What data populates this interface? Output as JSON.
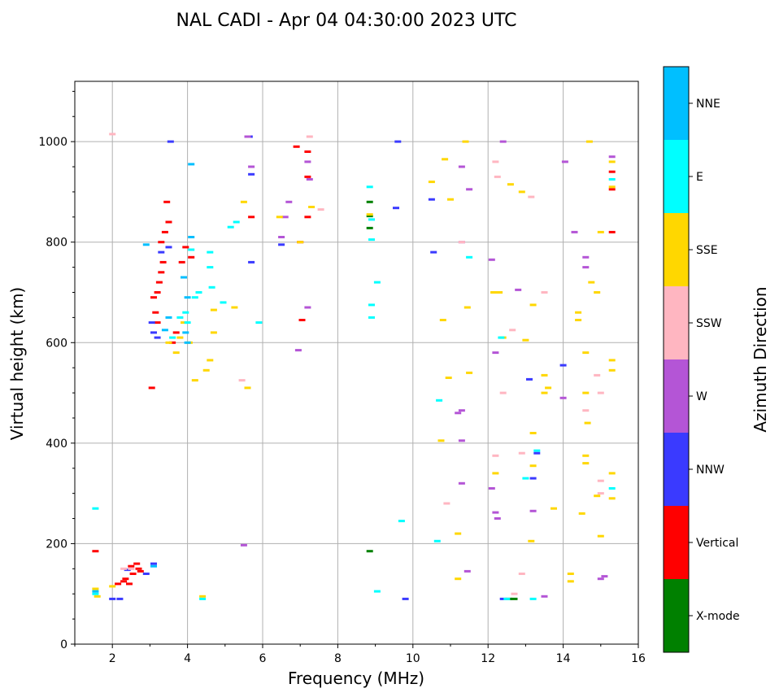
{
  "chart_data": {
    "type": "scatter",
    "title": "NAL CADI - Apr 04 04:30:00 2023 UTC",
    "xlabel": "Frequency (MHz)",
    "ylabel": "Virtual height (km)",
    "xlim": [
      1,
      16
    ],
    "ylim": [
      0,
      1120
    ],
    "xticks": [
      2,
      4,
      6,
      8,
      10,
      12,
      14,
      16
    ],
    "yticks": [
      0,
      200,
      400,
      600,
      800,
      1000
    ],
    "grid": true,
    "colorbar": {
      "label": "Azimuth Direction",
      "categories": [
        {
          "name": "X-mode",
          "color": "#008000"
        },
        {
          "name": "Vertical",
          "color": "#ff0000"
        },
        {
          "name": "NNW",
          "color": "#3a3aff"
        },
        {
          "name": "W",
          "color": "#b455d6"
        },
        {
          "name": "SSW",
          "color": "#ffb6c1"
        },
        {
          "name": "SSE",
          "color": "#ffd700"
        },
        {
          "name": "E",
          "color": "#00ffff"
        },
        {
          "name": "NNE",
          "color": "#00bfff"
        }
      ]
    },
    "series": [
      {
        "name": "X-mode",
        "color": "#008000",
        "points": [
          [
            8.85,
            880
          ],
          [
            8.85,
            852
          ],
          [
            8.85,
            828
          ],
          [
            8.85,
            185
          ],
          [
            12.7,
            90
          ],
          [
            12.55,
            90
          ]
        ]
      },
      {
        "name": "Vertical",
        "color": "#ff0000",
        "points": [
          [
            1.55,
            185
          ],
          [
            3.05,
            510
          ],
          [
            3.1,
            690
          ],
          [
            3.2,
            700
          ],
          [
            3.25,
            720
          ],
          [
            3.3,
            740
          ],
          [
            3.35,
            760
          ],
          [
            3.4,
            820
          ],
          [
            3.45,
            880
          ],
          [
            3.5,
            840
          ],
          [
            3.15,
            660
          ],
          [
            3.2,
            640
          ],
          [
            3.3,
            800
          ],
          [
            3.6,
            600
          ],
          [
            3.7,
            620
          ],
          [
            3.85,
            760
          ],
          [
            3.95,
            790
          ],
          [
            4.1,
            770
          ],
          [
            5.7,
            850
          ],
          [
            6.9,
            990
          ],
          [
            7.0,
            800
          ],
          [
            7.05,
            645
          ],
          [
            7.2,
            980
          ],
          [
            7.2,
            930
          ],
          [
            7.2,
            850
          ],
          [
            15.3,
            940
          ],
          [
            15.3,
            905
          ],
          [
            15.3,
            820
          ],
          [
            2.35,
            130
          ],
          [
            2.45,
            120
          ],
          [
            2.55,
            140
          ],
          [
            2.65,
            160
          ],
          [
            2.75,
            145
          ],
          [
            2.3,
            125
          ],
          [
            2.5,
            155
          ],
          [
            2.15,
            120
          ],
          [
            2.7,
            150
          ]
        ]
      },
      {
        "name": "NNW",
        "color": "#3a3aff",
        "points": [
          [
            3.05,
            640
          ],
          [
            3.1,
            620
          ],
          [
            3.2,
            610
          ],
          [
            3.3,
            780
          ],
          [
            3.5,
            790
          ],
          [
            3.55,
            1000
          ],
          [
            5.65,
            1010
          ],
          [
            5.7,
            935
          ],
          [
            5.7,
            760
          ],
          [
            6.5,
            795
          ],
          [
            9.6,
            1000
          ],
          [
            9.55,
            868
          ],
          [
            10.5,
            885
          ],
          [
            10.55,
            780
          ],
          [
            13.1,
            527
          ],
          [
            13.2,
            330
          ],
          [
            13.3,
            380
          ],
          [
            14.0,
            555
          ],
          [
            2.4,
            148
          ],
          [
            2.9,
            140
          ],
          [
            3.1,
            160
          ],
          [
            2.0,
            90
          ],
          [
            2.2,
            90
          ],
          [
            9.8,
            90
          ],
          [
            12.4,
            90
          ]
        ]
      },
      {
        "name": "W",
        "color": "#b455d6",
        "points": [
          [
            5.5,
            197
          ],
          [
            5.6,
            1010
          ],
          [
            5.7,
            950
          ],
          [
            6.5,
            810
          ],
          [
            6.6,
            850
          ],
          [
            6.7,
            880
          ],
          [
            6.95,
            585
          ],
          [
            7.2,
            960
          ],
          [
            7.25,
            925
          ],
          [
            7.2,
            670
          ],
          [
            11.3,
            950
          ],
          [
            11.5,
            905
          ],
          [
            11.3,
            800
          ],
          [
            11.2,
            460
          ],
          [
            11.3,
            465
          ],
          [
            11.3,
            405
          ],
          [
            11.3,
            320
          ],
          [
            11.45,
            145
          ],
          [
            12.1,
            765
          ],
          [
            12.2,
            580
          ],
          [
            12.2,
            262
          ],
          [
            12.25,
            250
          ],
          [
            12.1,
            310
          ],
          [
            12.4,
            1000
          ],
          [
            12.8,
            705
          ],
          [
            13.2,
            265
          ],
          [
            13.5,
            95
          ],
          [
            14.05,
            960
          ],
          [
            14.3,
            820
          ],
          [
            14.6,
            750
          ],
          [
            14.6,
            770
          ],
          [
            14.0,
            490
          ],
          [
            15.3,
            970
          ],
          [
            15.0,
            130
          ],
          [
            15.1,
            135
          ]
        ]
      },
      {
        "name": "SSW",
        "color": "#ffb6c1",
        "points": [
          [
            2.0,
            1015
          ],
          [
            5.45,
            525
          ],
          [
            7.25,
            1010
          ],
          [
            7.55,
            865
          ],
          [
            11.3,
            800
          ],
          [
            12.2,
            960
          ],
          [
            12.25,
            930
          ],
          [
            12.4,
            500
          ],
          [
            12.2,
            375
          ],
          [
            12.65,
            625
          ],
          [
            12.7,
            100
          ],
          [
            12.9,
            380
          ],
          [
            12.9,
            140
          ],
          [
            13.15,
            890
          ],
          [
            13.5,
            700
          ],
          [
            14.6,
            465
          ],
          [
            14.9,
            535
          ],
          [
            15.0,
            500
          ],
          [
            15.0,
            325
          ],
          [
            15.0,
            300
          ],
          [
            10.9,
            280
          ],
          [
            2.3,
            150
          ],
          [
            2.5,
            150
          ]
        ]
      },
      {
        "name": "SSE",
        "color": "#ffd700",
        "points": [
          [
            3.5,
            600
          ],
          [
            3.7,
            580
          ],
          [
            3.8,
            610
          ],
          [
            3.9,
            640
          ],
          [
            4.05,
            600
          ],
          [
            4.2,
            525
          ],
          [
            4.5,
            545
          ],
          [
            4.6,
            565
          ],
          [
            4.7,
            620
          ],
          [
            4.7,
            665
          ],
          [
            5.25,
            670
          ],
          [
            5.5,
            880
          ],
          [
            5.6,
            510
          ],
          [
            6.45,
            850
          ],
          [
            7.0,
            800
          ],
          [
            7.3,
            870
          ],
          [
            8.85,
            855
          ],
          [
            10.5,
            920
          ],
          [
            10.75,
            405
          ],
          [
            10.8,
            645
          ],
          [
            10.95,
            530
          ],
          [
            10.85,
            965
          ],
          [
            11.0,
            885
          ],
          [
            11.2,
            130
          ],
          [
            11.2,
            220
          ],
          [
            11.4,
            1000
          ],
          [
            11.5,
            540
          ],
          [
            11.45,
            670
          ],
          [
            12.15,
            700
          ],
          [
            12.2,
            340
          ],
          [
            12.3,
            700
          ],
          [
            12.4,
            610
          ],
          [
            12.6,
            915
          ],
          [
            12.9,
            900
          ],
          [
            13.0,
            605
          ],
          [
            13.2,
            420
          ],
          [
            13.2,
            675
          ],
          [
            13.2,
            355
          ],
          [
            13.15,
            205
          ],
          [
            13.5,
            535
          ],
          [
            13.5,
            500
          ],
          [
            13.6,
            510
          ],
          [
            13.75,
            270
          ],
          [
            14.2,
            140
          ],
          [
            14.2,
            125
          ],
          [
            14.4,
            660
          ],
          [
            14.4,
            645
          ],
          [
            14.5,
            260
          ],
          [
            14.6,
            580
          ],
          [
            14.65,
            440
          ],
          [
            14.7,
            1000
          ],
          [
            14.6,
            375
          ],
          [
            14.6,
            360
          ],
          [
            14.6,
            500
          ],
          [
            14.75,
            720
          ],
          [
            14.9,
            700
          ],
          [
            14.9,
            295
          ],
          [
            15.0,
            215
          ],
          [
            15.0,
            820
          ],
          [
            15.3,
            960
          ],
          [
            15.3,
            910
          ],
          [
            15.3,
            565
          ],
          [
            15.3,
            545
          ],
          [
            15.3,
            340
          ],
          [
            15.3,
            290
          ],
          [
            1.55,
            110
          ],
          [
            1.6,
            95
          ],
          [
            2.0,
            115
          ],
          [
            4.4,
            95
          ]
        ]
      },
      {
        "name": "E",
        "color": "#00ffff",
        "points": [
          [
            1.55,
            270
          ],
          [
            1.55,
            100
          ],
          [
            3.6,
            610
          ],
          [
            3.8,
            650
          ],
          [
            3.95,
            660
          ],
          [
            4.0,
            640
          ],
          [
            4.1,
            785
          ],
          [
            4.2,
            690
          ],
          [
            4.3,
            700
          ],
          [
            4.6,
            780
          ],
          [
            4.6,
            750
          ],
          [
            4.65,
            710
          ],
          [
            4.95,
            680
          ],
          [
            5.15,
            830
          ],
          [
            5.3,
            840
          ],
          [
            5.9,
            640
          ],
          [
            8.85,
            910
          ],
          [
            8.9,
            845
          ],
          [
            8.9,
            805
          ],
          [
            8.9,
            675
          ],
          [
            8.9,
            650
          ],
          [
            9.05,
            720
          ],
          [
            9.05,
            105
          ],
          [
            9.7,
            245
          ],
          [
            10.65,
            205
          ],
          [
            10.7,
            485
          ],
          [
            11.5,
            770
          ],
          [
            12.35,
            610
          ],
          [
            12.5,
            90
          ],
          [
            13.0,
            330
          ],
          [
            13.2,
            90
          ],
          [
            13.3,
            385
          ],
          [
            15.3,
            925
          ],
          [
            15.3,
            310
          ],
          [
            4.4,
            90
          ]
        ]
      },
      {
        "name": "NNE",
        "color": "#00bfff",
        "points": [
          [
            1.55,
            105
          ],
          [
            2.9,
            795
          ],
          [
            3.4,
            625
          ],
          [
            3.5,
            650
          ],
          [
            3.9,
            730
          ],
          [
            3.95,
            620
          ],
          [
            4.0,
            600
          ],
          [
            4.1,
            955
          ],
          [
            4.1,
            810
          ],
          [
            4.0,
            690
          ],
          [
            3.1,
            155
          ]
        ]
      }
    ]
  }
}
